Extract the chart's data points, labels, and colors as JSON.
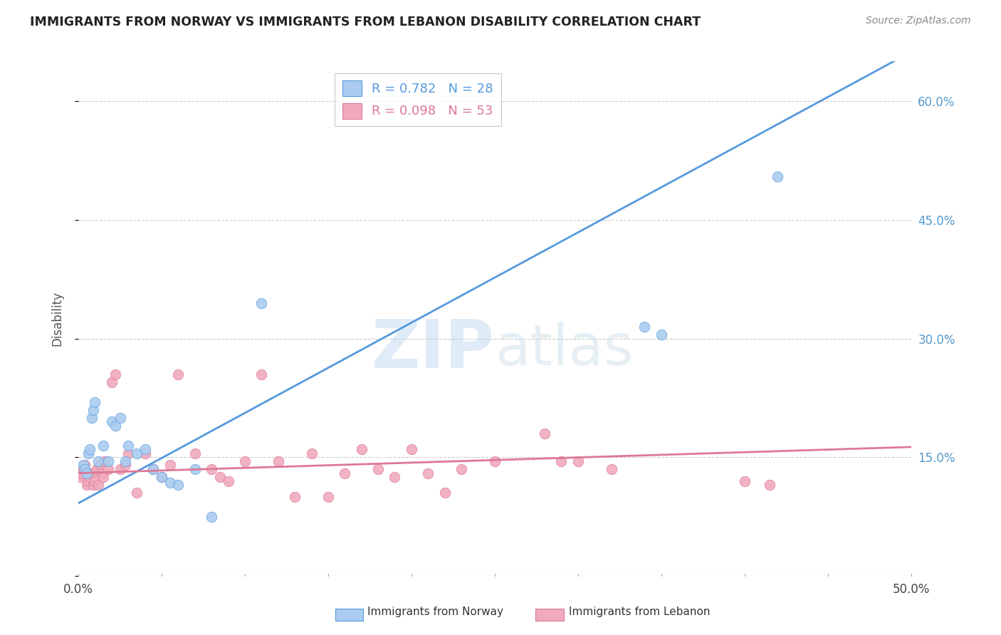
{
  "title": "IMMIGRANTS FROM NORWAY VS IMMIGRANTS FROM LEBANON DISABILITY CORRELATION CHART",
  "source": "Source: ZipAtlas.com",
  "ylabel": "Disability",
  "xlim": [
    0,
    0.5
  ],
  "ylim": [
    0,
    0.65
  ],
  "y_ticks": [
    0.0,
    0.15,
    0.3,
    0.45,
    0.6
  ],
  "y_tick_labels": [
    "",
    "15.0%",
    "30.0%",
    "45.0%",
    "60.0%"
  ],
  "x_ticks": [
    0.0,
    0.05,
    0.1,
    0.15,
    0.2,
    0.25,
    0.3,
    0.35,
    0.4,
    0.45,
    0.5
  ],
  "norway_color": "#aaccf0",
  "lebanon_color": "#f0aabb",
  "norway_R": 0.782,
  "norway_N": 28,
  "lebanon_R": 0.098,
  "lebanon_N": 53,
  "norway_line_color": "#5599dd",
  "lebanon_line_color": "#dd7799",
  "legend_label_norway": "Immigrants from Norway",
  "legend_label_lebanon": "Immigrants from Lebanon",
  "watermark_zip": "ZIP",
  "watermark_atlas": "atlas",
  "norway_x": [
    0.003,
    0.004,
    0.005,
    0.006,
    0.007,
    0.008,
    0.009,
    0.01,
    0.012,
    0.015,
    0.018,
    0.02,
    0.022,
    0.025,
    0.028,
    0.03,
    0.035,
    0.04,
    0.045,
    0.05,
    0.055,
    0.06,
    0.07,
    0.08,
    0.11,
    0.34,
    0.35,
    0.42
  ],
  "norway_y": [
    0.14,
    0.135,
    0.13,
    0.155,
    0.16,
    0.2,
    0.21,
    0.22,
    0.145,
    0.165,
    0.145,
    0.195,
    0.19,
    0.2,
    0.145,
    0.165,
    0.155,
    0.16,
    0.135,
    0.125,
    0.118,
    0.115,
    0.135,
    0.075,
    0.345,
    0.315,
    0.305,
    0.505
  ],
  "lebanon_x": [
    0.001,
    0.002,
    0.003,
    0.004,
    0.005,
    0.006,
    0.007,
    0.008,
    0.009,
    0.01,
    0.011,
    0.012,
    0.013,
    0.014,
    0.015,
    0.016,
    0.018,
    0.02,
    0.022,
    0.025,
    0.028,
    0.03,
    0.035,
    0.04,
    0.045,
    0.05,
    0.055,
    0.06,
    0.07,
    0.08,
    0.085,
    0.09,
    0.1,
    0.11,
    0.12,
    0.13,
    0.14,
    0.15,
    0.16,
    0.17,
    0.18,
    0.19,
    0.2,
    0.21,
    0.22,
    0.23,
    0.25,
    0.28,
    0.29,
    0.3,
    0.32,
    0.4,
    0.415
  ],
  "lebanon_y": [
    0.125,
    0.13,
    0.135,
    0.14,
    0.115,
    0.12,
    0.125,
    0.13,
    0.115,
    0.12,
    0.135,
    0.115,
    0.14,
    0.13,
    0.125,
    0.145,
    0.135,
    0.245,
    0.255,
    0.135,
    0.14,
    0.155,
    0.105,
    0.155,
    0.135,
    0.125,
    0.14,
    0.255,
    0.155,
    0.135,
    0.125,
    0.12,
    0.145,
    0.255,
    0.145,
    0.1,
    0.155,
    0.1,
    0.13,
    0.16,
    0.135,
    0.125,
    0.16,
    0.13,
    0.105,
    0.135,
    0.145,
    0.18,
    0.145,
    0.145,
    0.135,
    0.12,
    0.115
  ],
  "norway_line_x": [
    0.0,
    0.5
  ],
  "norway_line_y": [
    0.092,
    0.662
  ],
  "lebanon_line_x": [
    0.0,
    0.5
  ],
  "lebanon_line_y": [
    0.13,
    0.163
  ]
}
